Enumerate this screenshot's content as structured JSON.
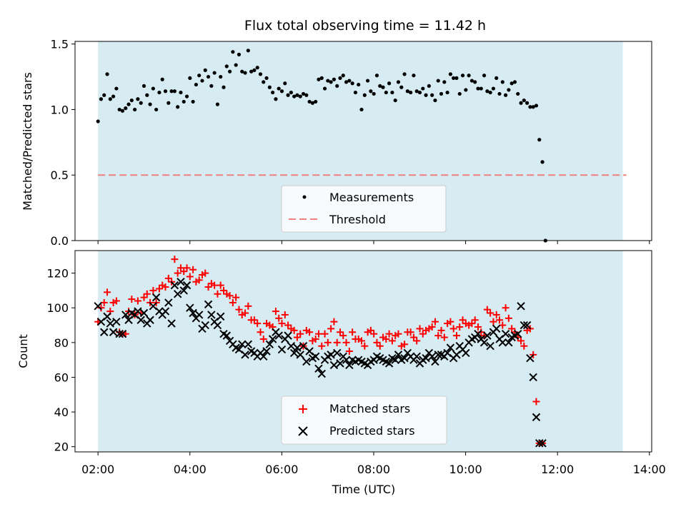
{
  "chart_data": [
    {
      "type": "scatter",
      "title": "Flux total observing time = 11.42 h",
      "xlabel": "",
      "ylabel": "Matched/Predicted stars",
      "xlim_hours": [
        1.5,
        14.05
      ],
      "ylim": [
        0,
        1.52
      ],
      "yticks": [
        0.0,
        0.5,
        1.0,
        1.5
      ],
      "ytick_labels": [
        "0.0",
        "0.5",
        "1.0",
        "1.5"
      ],
      "observing_window_hours": [
        2.0,
        13.42
      ],
      "threshold": 0.5,
      "legend": {
        "placement": "lower-center",
        "entries": [
          {
            "key": "measurements",
            "label": "Measurements"
          },
          {
            "key": "threshold",
            "label": "Threshold"
          }
        ]
      },
      "series": [
        {
          "name": "Measurements",
          "x_start_hours": 2.0,
          "x_step_hours": 0.0667,
          "values": [
            0.91,
            1.08,
            1.11,
            1.27,
            1.08,
            1.1,
            1.16,
            1.0,
            0.99,
            1.01,
            1.04,
            1.07,
            1.0,
            1.08,
            1.05,
            1.18,
            1.11,
            1.04,
            1.16,
            1.0,
            1.13,
            1.23,
            1.14,
            1.05,
            1.14,
            1.14,
            1.02,
            1.13,
            1.06,
            1.1,
            1.24,
            1.06,
            1.19,
            1.26,
            1.22,
            1.3,
            1.25,
            1.18,
            1.28,
            1.04,
            1.25,
            1.17,
            1.33,
            1.29,
            1.44,
            1.34,
            1.42,
            1.29,
            1.28,
            1.45,
            1.29,
            1.3,
            1.32,
            1.27,
            1.21,
            1.24,
            1.17,
            1.13,
            1.08,
            1.16,
            1.14,
            1.2,
            1.11,
            1.13,
            1.1,
            1.11,
            1.1,
            1.12,
            1.11,
            1.06,
            1.05,
            1.06,
            1.23,
            1.24,
            1.16,
            1.22,
            1.21,
            1.23,
            1.18,
            1.24,
            1.26,
            1.21,
            1.22,
            1.2,
            1.13,
            1.19,
            1.0,
            1.11,
            1.22,
            1.14,
            1.12,
            1.26,
            1.18,
            1.17,
            1.13,
            1.2,
            1.13,
            1.07,
            1.21,
            1.17,
            1.27,
            1.14,
            1.13,
            1.26,
            1.14,
            1.13,
            1.16,
            1.11,
            1.18,
            1.11,
            1.07,
            1.22,
            1.12,
            1.21,
            1.13,
            1.27,
            1.24,
            1.24,
            1.12,
            1.26,
            1.15,
            1.26,
            1.22,
            1.21,
            1.16,
            1.16,
            1.26,
            1.14,
            1.13,
            1.16,
            1.24,
            1.12,
            1.21,
            1.11,
            1.15,
            1.2,
            1.21,
            1.12,
            1.05,
            1.07,
            1.05,
            1.02,
            1.02,
            1.03,
            0.77,
            0.6,
            0.0
          ]
        }
      ]
    },
    {
      "type": "scatter",
      "title": "",
      "xlabel": "Time (UTC)",
      "ylabel": "Count",
      "xlim_hours": [
        1.5,
        14.05
      ],
      "ylim": [
        17,
        133
      ],
      "xticks_hours": [
        2,
        4,
        6,
        8,
        10,
        12,
        14
      ],
      "xtick_labels": [
        "02:00",
        "04:00",
        "06:00",
        "08:00",
        "10:00",
        "12:00",
        "14:00"
      ],
      "yticks": [
        20,
        40,
        60,
        80,
        100,
        120
      ],
      "ytick_labels": [
        "20",
        "40",
        "60",
        "80",
        "100",
        "120"
      ],
      "observing_window_hours": [
        2.0,
        13.42
      ],
      "legend": {
        "placement": "lower-center",
        "entries": [
          {
            "key": "matched",
            "label": "Matched stars"
          },
          {
            "key": "predicted",
            "label": "Predicted stars"
          }
        ]
      },
      "series": [
        {
          "name": "Matched stars",
          "marker": "plus",
          "color": "#ff0000",
          "x_start_hours": 2.0,
          "x_step_hours": 0.0667,
          "values": [
            92,
            100,
            103,
            109,
            98,
            103,
            104,
            86,
            85,
            85,
            98,
            105,
            96,
            104,
            97,
            106,
            108,
            103,
            110,
            103,
            111,
            113,
            112,
            117,
            115,
            128,
            120,
            123,
            121,
            123,
            118,
            122,
            115,
            116,
            119,
            120,
            112,
            114,
            113,
            108,
            113,
            110,
            108,
            107,
            103,
            106,
            99,
            96,
            97,
            101,
            93,
            93,
            91,
            86,
            82,
            91,
            90,
            89,
            98,
            94,
            91,
            96,
            90,
            88,
            87,
            83,
            85,
            78,
            87,
            86,
            81,
            82,
            85,
            78,
            85,
            80,
            88,
            92,
            80,
            86,
            84,
            80,
            75,
            86,
            82,
            82,
            81,
            78,
            86,
            87,
            85,
            80,
            78,
            83,
            82,
            85,
            81,
            84,
            85,
            78,
            79,
            86,
            86,
            83,
            81,
            88,
            85,
            87,
            88,
            89,
            92,
            84,
            87,
            83,
            91,
            92,
            88,
            84,
            89,
            93,
            91,
            90,
            91,
            93,
            89,
            86,
            84,
            99,
            97,
            92,
            96,
            93,
            90,
            100,
            94,
            88,
            86,
            83,
            81,
            78,
            87,
            88,
            73,
            46,
            22,
            22
          ]
        },
        {
          "name": "Predicted stars",
          "marker": "x",
          "color": "#000000",
          "x_start_hours": 2.0,
          "x_step_hours": 0.0667,
          "values": [
            101,
            92,
            86,
            95,
            91,
            86,
            92,
            85,
            85,
            96,
            93,
            97,
            96,
            98,
            93,
            97,
            91,
            93,
            101,
            106,
            98,
            96,
            98,
            103,
            91,
            113,
            108,
            115,
            110,
            113,
            100,
            97,
            94,
            96,
            88,
            90,
            102,
            96,
            92,
            90,
            95,
            85,
            84,
            81,
            79,
            77,
            76,
            79,
            73,
            79,
            75,
            74,
            72,
            74,
            72,
            75,
            79,
            82,
            86,
            84,
            76,
            82,
            84,
            78,
            74,
            77,
            73,
            78,
            69,
            75,
            71,
            72,
            65,
            62,
            70,
            72,
            73,
            67,
            74,
            68,
            72,
            70,
            67,
            70,
            69,
            70,
            69,
            68,
            67,
            69,
            70,
            72,
            71,
            70,
            69,
            68,
            71,
            70,
            73,
            70,
            71,
            74,
            72,
            70,
            72,
            68,
            70,
            71,
            74,
            72,
            69,
            73,
            73,
            72,
            74,
            77,
            71,
            73,
            78,
            76,
            74,
            80,
            82,
            83,
            85,
            82,
            80,
            84,
            78,
            86,
            88,
            82,
            80,
            85,
            80,
            83,
            84,
            85,
            101,
            90,
            90,
            71,
            60,
            37,
            22,
            22
          ]
        }
      ]
    }
  ]
}
